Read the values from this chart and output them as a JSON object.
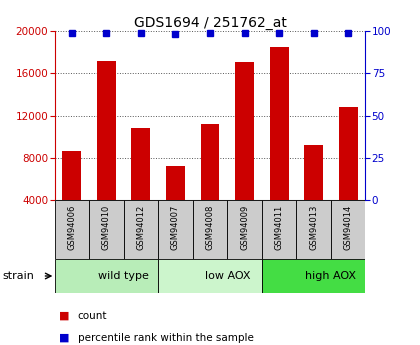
{
  "title": "GDS1694 / 251762_at",
  "samples": [
    "GSM94006",
    "GSM94010",
    "GSM94012",
    "GSM94007",
    "GSM94008",
    "GSM94009",
    "GSM94011",
    "GSM94013",
    "GSM94014"
  ],
  "counts": [
    8600,
    17200,
    10800,
    7200,
    11200,
    17100,
    18500,
    9200,
    12800
  ],
  "percentiles": [
    99,
    99,
    99,
    98,
    99,
    99,
    99,
    99,
    99
  ],
  "groups": [
    {
      "label": "wild type",
      "start": 0,
      "end": 3,
      "color": "#b8edb8"
    },
    {
      "label": "low AOX",
      "start": 3,
      "end": 6,
      "color": "#ccf5cc"
    },
    {
      "label": "high AOX",
      "start": 6,
      "end": 9,
      "color": "#44dd44"
    }
  ],
  "group_row_color": "#cccccc",
  "bar_color": "#cc0000",
  "dot_color": "#0000cc",
  "ylim_left": [
    4000,
    20000
  ],
  "ylim_right": [
    0,
    100
  ],
  "yticks_left": [
    4000,
    8000,
    12000,
    16000,
    20000
  ],
  "yticks_right": [
    0,
    25,
    50,
    75,
    100
  ],
  "left_tick_color": "#cc0000",
  "right_tick_color": "#0000cc",
  "legend_count_label": "count",
  "legend_pct_label": "percentile rank within the sample",
  "strain_label": "strain",
  "background_color": "#ffffff"
}
